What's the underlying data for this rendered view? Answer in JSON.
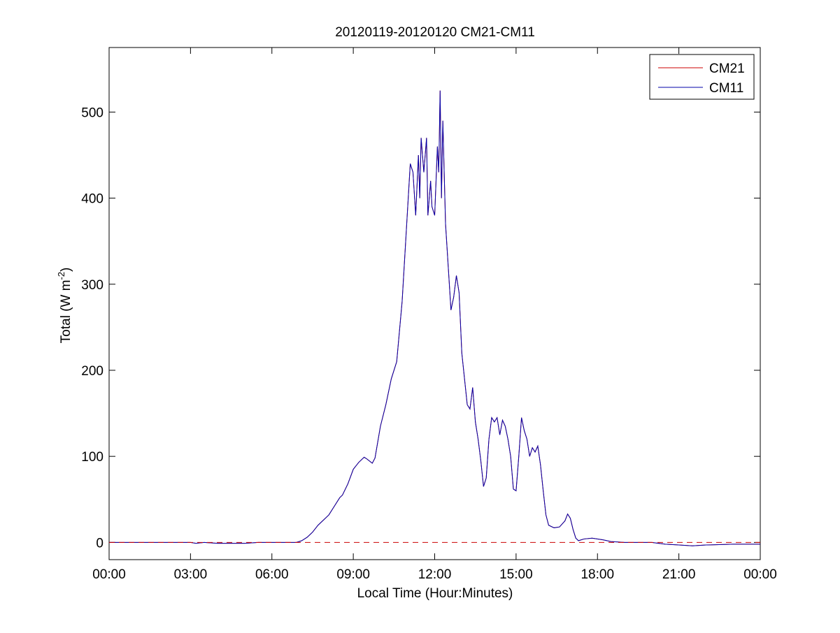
{
  "chart_data": {
    "type": "line",
    "title": "20120119-20120120 CM21-CM11",
    "xlabel": "Local Time (Hour:Minutes)",
    "ylabel_main": "Total (W m",
    "ylabel_sup": "-2",
    "ylabel_close": ")",
    "xlim": [
      0,
      24
    ],
    "ylim": [
      -20,
      575
    ],
    "x_ticks": [
      0,
      3,
      6,
      9,
      12,
      15,
      18,
      21,
      24
    ],
    "x_tick_labels": [
      "00:00",
      "03:00",
      "06:00",
      "09:00",
      "12:00",
      "15:00",
      "18:00",
      "21:00",
      "00:00"
    ],
    "y_ticks": [
      0,
      100,
      200,
      300,
      400,
      500
    ],
    "y_tick_labels": [
      "0",
      "100",
      "200",
      "300",
      "400",
      "500"
    ],
    "zero_line": {
      "y": 0,
      "style": "dashed",
      "color": "#cc0000"
    },
    "legend": {
      "position": "top-right"
    },
    "series": [
      {
        "name": "CM21",
        "color": "#cc0000",
        "points": [
          [
            0,
            0
          ],
          [
            3,
            0
          ],
          [
            3.2,
            -1
          ],
          [
            3.5,
            0
          ],
          [
            4,
            -1
          ],
          [
            5,
            -1
          ],
          [
            5.5,
            0
          ],
          [
            6,
            0
          ],
          [
            6.9,
            0
          ],
          [
            7.1,
            2
          ],
          [
            7.3,
            6
          ],
          [
            7.5,
            12
          ],
          [
            7.7,
            20
          ],
          [
            7.9,
            26
          ],
          [
            8.1,
            32
          ],
          [
            8.3,
            42
          ],
          [
            8.5,
            52
          ],
          [
            8.6,
            55
          ],
          [
            8.8,
            68
          ],
          [
            9.0,
            85
          ],
          [
            9.2,
            93
          ],
          [
            9.4,
            99
          ],
          [
            9.5,
            97
          ],
          [
            9.7,
            92
          ],
          [
            9.8,
            98
          ],
          [
            10.0,
            135
          ],
          [
            10.2,
            160
          ],
          [
            10.4,
            190
          ],
          [
            10.6,
            210
          ],
          [
            10.8,
            280
          ],
          [
            10.95,
            360
          ],
          [
            11.1,
            440
          ],
          [
            11.2,
            430
          ],
          [
            11.3,
            380
          ],
          [
            11.4,
            450
          ],
          [
            11.45,
            400
          ],
          [
            11.5,
            470
          ],
          [
            11.6,
            430
          ],
          [
            11.7,
            470
          ],
          [
            11.75,
            380
          ],
          [
            11.85,
            420
          ],
          [
            11.9,
            390
          ],
          [
            12.0,
            380
          ],
          [
            12.1,
            460
          ],
          [
            12.15,
            430
          ],
          [
            12.2,
            525
          ],
          [
            12.25,
            400
          ],
          [
            12.3,
            490
          ],
          [
            12.4,
            370
          ],
          [
            12.5,
            320
          ],
          [
            12.6,
            270
          ],
          [
            12.7,
            285
          ],
          [
            12.8,
            310
          ],
          [
            12.9,
            290
          ],
          [
            13.0,
            220
          ],
          [
            13.1,
            190
          ],
          [
            13.2,
            160
          ],
          [
            13.3,
            155
          ],
          [
            13.4,
            180
          ],
          [
            13.5,
            140
          ],
          [
            13.6,
            120
          ],
          [
            13.7,
            95
          ],
          [
            13.8,
            65
          ],
          [
            13.9,
            75
          ],
          [
            14.0,
            120
          ],
          [
            14.1,
            145
          ],
          [
            14.2,
            140
          ],
          [
            14.3,
            145
          ],
          [
            14.4,
            125
          ],
          [
            14.5,
            142
          ],
          [
            14.6,
            135
          ],
          [
            14.7,
            120
          ],
          [
            14.8,
            100
          ],
          [
            14.9,
            62
          ],
          [
            15.0,
            60
          ],
          [
            15.1,
            100
          ],
          [
            15.2,
            145
          ],
          [
            15.3,
            130
          ],
          [
            15.4,
            120
          ],
          [
            15.5,
            100
          ],
          [
            15.6,
            110
          ],
          [
            15.7,
            105
          ],
          [
            15.8,
            112
          ],
          [
            15.9,
            90
          ],
          [
            16.0,
            60
          ],
          [
            16.1,
            32
          ],
          [
            16.2,
            20
          ],
          [
            16.4,
            17
          ],
          [
            16.6,
            18
          ],
          [
            16.8,
            25
          ],
          [
            16.9,
            33
          ],
          [
            17.0,
            28
          ],
          [
            17.1,
            15
          ],
          [
            17.2,
            5
          ],
          [
            17.3,
            2
          ],
          [
            17.5,
            4
          ],
          [
            17.8,
            5
          ],
          [
            18.2,
            3
          ],
          [
            18.5,
            1
          ],
          [
            19,
            0
          ],
          [
            20,
            0
          ],
          [
            20.5,
            -2
          ],
          [
            21,
            -3
          ],
          [
            21.5,
            -4
          ],
          [
            22,
            -3
          ],
          [
            23,
            -2
          ],
          [
            24,
            -2
          ]
        ]
      },
      {
        "name": "CM11",
        "color": "#0000aa",
        "points": [
          [
            0,
            0
          ],
          [
            3,
            0
          ],
          [
            3.2,
            -1
          ],
          [
            3.5,
            0
          ],
          [
            4,
            -1
          ],
          [
            5,
            -1
          ],
          [
            5.5,
            0
          ],
          [
            6,
            0
          ],
          [
            6.9,
            0
          ],
          [
            7.1,
            2
          ],
          [
            7.3,
            6
          ],
          [
            7.5,
            12
          ],
          [
            7.7,
            20
          ],
          [
            7.9,
            26
          ],
          [
            8.1,
            32
          ],
          [
            8.3,
            42
          ],
          [
            8.5,
            52
          ],
          [
            8.6,
            55
          ],
          [
            8.8,
            68
          ],
          [
            9.0,
            85
          ],
          [
            9.2,
            93
          ],
          [
            9.4,
            99
          ],
          [
            9.5,
            97
          ],
          [
            9.7,
            92
          ],
          [
            9.8,
            98
          ],
          [
            10.0,
            135
          ],
          [
            10.2,
            160
          ],
          [
            10.4,
            190
          ],
          [
            10.6,
            210
          ],
          [
            10.8,
            280
          ],
          [
            10.95,
            360
          ],
          [
            11.1,
            440
          ],
          [
            11.2,
            430
          ],
          [
            11.3,
            380
          ],
          [
            11.4,
            450
          ],
          [
            11.45,
            400
          ],
          [
            11.5,
            470
          ],
          [
            11.6,
            430
          ],
          [
            11.7,
            470
          ],
          [
            11.75,
            380
          ],
          [
            11.85,
            420
          ],
          [
            11.9,
            390
          ],
          [
            12.0,
            380
          ],
          [
            12.1,
            460
          ],
          [
            12.15,
            430
          ],
          [
            12.2,
            525
          ],
          [
            12.25,
            400
          ],
          [
            12.3,
            490
          ],
          [
            12.4,
            370
          ],
          [
            12.5,
            320
          ],
          [
            12.6,
            270
          ],
          [
            12.7,
            285
          ],
          [
            12.8,
            310
          ],
          [
            12.9,
            290
          ],
          [
            13.0,
            220
          ],
          [
            13.1,
            190
          ],
          [
            13.2,
            160
          ],
          [
            13.3,
            155
          ],
          [
            13.4,
            180
          ],
          [
            13.5,
            140
          ],
          [
            13.6,
            120
          ],
          [
            13.7,
            95
          ],
          [
            13.8,
            65
          ],
          [
            13.9,
            75
          ],
          [
            14.0,
            120
          ],
          [
            14.1,
            145
          ],
          [
            14.2,
            140
          ],
          [
            14.3,
            145
          ],
          [
            14.4,
            125
          ],
          [
            14.5,
            142
          ],
          [
            14.6,
            135
          ],
          [
            14.7,
            120
          ],
          [
            14.8,
            100
          ],
          [
            14.9,
            62
          ],
          [
            15.0,
            60
          ],
          [
            15.1,
            100
          ],
          [
            15.2,
            145
          ],
          [
            15.3,
            130
          ],
          [
            15.4,
            120
          ],
          [
            15.5,
            100
          ],
          [
            15.6,
            110
          ],
          [
            15.7,
            105
          ],
          [
            15.8,
            112
          ],
          [
            15.9,
            90
          ],
          [
            16.0,
            60
          ],
          [
            16.1,
            32
          ],
          [
            16.2,
            20
          ],
          [
            16.4,
            17
          ],
          [
            16.6,
            18
          ],
          [
            16.8,
            25
          ],
          [
            16.9,
            33
          ],
          [
            17.0,
            28
          ],
          [
            17.1,
            15
          ],
          [
            17.2,
            5
          ],
          [
            17.3,
            2
          ],
          [
            17.5,
            4
          ],
          [
            17.8,
            5
          ],
          [
            18.2,
            3
          ],
          [
            18.5,
            1
          ],
          [
            19,
            0
          ],
          [
            20,
            0
          ],
          [
            20.5,
            -2
          ],
          [
            21,
            -3
          ],
          [
            21.5,
            -4
          ],
          [
            22,
            -3
          ],
          [
            23,
            -2
          ],
          [
            24,
            -2
          ]
        ]
      }
    ]
  }
}
